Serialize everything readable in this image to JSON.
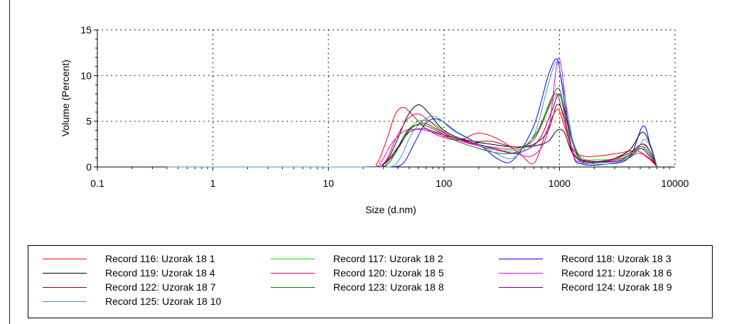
{
  "chart_data": {
    "type": "line",
    "xscale": "log",
    "xlim": [
      0.1,
      10000
    ],
    "ylim": [
      0,
      15
    ],
    "xlabel": "Size (d.nm)",
    "ylabel": "Volume (Percent)",
    "xticks": [
      "0.1",
      "1",
      "10",
      "100",
      "1000",
      "10000"
    ],
    "yticks": [
      "0",
      "5",
      "10",
      "15"
    ],
    "grid": "dotted",
    "legend_position": "bottom",
    "series": [
      {
        "name": "Record 116: Uzorak 18 1",
        "color": "#ff0000",
        "x": [
          0.4,
          20,
          26,
          32,
          38,
          45,
          55,
          70,
          100,
          140,
          200,
          300,
          450,
          600,
          750,
          950,
          1100,
          1300,
          1600,
          2200,
          3200,
          4500,
          5200,
          6200,
          7000
        ],
        "y": [
          0,
          0,
          0.3,
          3.0,
          5.8,
          6.5,
          5.5,
          4.2,
          3.2,
          3.0,
          3.7,
          3.0,
          1.5,
          0.4,
          3.5,
          6.3,
          4.5,
          2.0,
          1.2,
          1.2,
          1.5,
          1.8,
          1.5,
          0.8,
          0
        ]
      },
      {
        "name": "Record 117: Uzorak 18 2",
        "color": "#00ee00",
        "x": [
          0.4,
          20,
          30,
          38,
          48,
          60,
          75,
          100,
          140,
          200,
          300,
          450,
          650,
          850,
          1000,
          1150,
          1500,
          2200,
          3500,
          5000,
          5800,
          7000
        ],
        "y": [
          0,
          0,
          0,
          1.5,
          3.8,
          5.0,
          5.0,
          4.0,
          3.0,
          2.5,
          1.8,
          2.0,
          3.8,
          7.0,
          7.8,
          5.0,
          1.2,
          0.8,
          1.0,
          2.0,
          1.5,
          0
        ]
      },
      {
        "name": "Record 118: Uzorak 18 3",
        "color": "#0000ff",
        "x": [
          0.4,
          20,
          36,
          45,
          55,
          70,
          90,
          130,
          200,
          300,
          400,
          600,
          800,
          950,
          1050,
          1300,
          1600,
          2500,
          4000,
          5300,
          6200,
          7000
        ],
        "y": [
          0,
          0,
          0,
          0.5,
          2.5,
          4.8,
          5.2,
          3.8,
          2.5,
          0.8,
          0.8,
          4.5,
          10.0,
          11.8,
          9.0,
          1.5,
          0.3,
          0.3,
          1.0,
          4.5,
          2.0,
          0
        ]
      },
      {
        "name": "Record 119: Uzorak 18 4",
        "color": "#000000",
        "x": [
          0.4,
          20,
          30,
          38,
          48,
          60,
          75,
          100,
          150,
          250,
          400,
          600,
          800,
          950,
          1100,
          1300,
          1700,
          2500,
          4000,
          5200,
          6200,
          7000
        ],
        "y": [
          0,
          0,
          0.3,
          2.5,
          5.5,
          6.8,
          5.8,
          4.0,
          3.0,
          2.5,
          2.2,
          2.3,
          2.8,
          4.0,
          3.8,
          1.5,
          0.6,
          0.6,
          1.8,
          3.8,
          2.2,
          0
        ]
      },
      {
        "name": "Record 120: Uzorak 18 5",
        "color": "#ff0066",
        "x": [
          0.4,
          20,
          30,
          38,
          48,
          60,
          75,
          100,
          150,
          250,
          400,
          600,
          800,
          950,
          1100,
          1400,
          2000,
          3200,
          4800,
          5800,
          7000
        ],
        "y": [
          0,
          0,
          0.4,
          3.0,
          5.2,
          5.8,
          5.0,
          3.8,
          2.8,
          2.2,
          2.0,
          3.0,
          6.5,
          8.0,
          5.0,
          1.0,
          0.6,
          0.8,
          1.5,
          1.0,
          0
        ]
      },
      {
        "name": "Record 121: Uzorak 18 6",
        "color": "#ee00ee",
        "x": [
          0.4,
          20,
          28,
          35,
          45,
          60,
          80,
          110,
          160,
          250,
          400,
          600,
          800,
          950,
          1050,
          1300,
          1700,
          2500,
          4000,
          5300,
          6200,
          7000
        ],
        "y": [
          0,
          0,
          0.5,
          2.5,
          3.9,
          4.1,
          3.8,
          3.2,
          2.6,
          2.0,
          1.5,
          1.3,
          4.0,
          11.3,
          10.5,
          1.5,
          0.6,
          0.6,
          1.5,
          2.5,
          1.5,
          0
        ]
      },
      {
        "name": "Record 122: Uzorak 18 7",
        "color": "#880022",
        "x": [
          0.4,
          20,
          30,
          40,
          50,
          65,
          85,
          120,
          180,
          260,
          400,
          600,
          800,
          950,
          1100,
          1300,
          1700,
          2500,
          4000,
          5200,
          6200,
          7000
        ],
        "y": [
          0,
          0,
          0.3,
          2.0,
          4.0,
          4.8,
          4.2,
          3.2,
          2.8,
          2.8,
          2.2,
          2.5,
          4.0,
          6.8,
          5.5,
          1.5,
          0.7,
          0.7,
          1.5,
          2.5,
          1.5,
          0
        ]
      },
      {
        "name": "Record 123: Uzorak 18 8",
        "color": "#007700",
        "x": [
          0.4,
          20,
          32,
          40,
          50,
          65,
          85,
          120,
          180,
          300,
          450,
          650,
          850,
          1000,
          1150,
          1500,
          2200,
          3500,
          5000,
          6000,
          7000
        ],
        "y": [
          0,
          0,
          0.3,
          2.2,
          4.2,
          4.6,
          4.0,
          3.0,
          2.2,
          1.5,
          1.8,
          4.0,
          7.5,
          8.5,
          5.0,
          0.8,
          0.5,
          0.8,
          2.2,
          1.5,
          0
        ]
      },
      {
        "name": "Record 124: Uzorak 18 9",
        "color": "#660088",
        "x": [
          0.4,
          20,
          30,
          40,
          50,
          65,
          85,
          120,
          180,
          280,
          420,
          650,
          850,
          1000,
          1150,
          1500,
          2300,
          3700,
          5000,
          6000,
          7000
        ],
        "y": [
          0,
          0,
          0.3,
          2.2,
          3.8,
          4.2,
          3.8,
          3.2,
          2.6,
          2.0,
          1.5,
          2.8,
          6.0,
          8.0,
          5.5,
          1.0,
          0.6,
          0.8,
          2.0,
          1.2,
          0
        ]
      },
      {
        "name": "Record 125: Uzorak 18 10",
        "color": "#4499bb",
        "x": [
          0.4,
          20,
          34,
          42,
          52,
          65,
          85,
          120,
          180,
          280,
          400,
          600,
          800,
          950,
          1100,
          1400,
          1800,
          2800,
          4300,
          5400,
          6300,
          7000
        ],
        "y": [
          0,
          0,
          0,
          1.0,
          3.5,
          5.0,
          5.5,
          4.0,
          2.8,
          1.5,
          1.0,
          3.5,
          9.0,
          11.5,
          8.0,
          1.2,
          0.4,
          0.4,
          1.2,
          3.0,
          1.8,
          0
        ]
      }
    ]
  },
  "legend": {
    "items": [
      {
        "label": "Record 116: Uzorak 18 1",
        "color": "#ff0000"
      },
      {
        "label": "Record 117: Uzorak 18 2",
        "color": "#00ee00"
      },
      {
        "label": "Record 118: Uzorak 18 3",
        "color": "#0000ff"
      },
      {
        "label": "Record 119: Uzorak 18 4",
        "color": "#000000"
      },
      {
        "label": "Record 120: Uzorak 18 5",
        "color": "#ff0066"
      },
      {
        "label": "Record 121: Uzorak 18 6",
        "color": "#ee00ee"
      },
      {
        "label": "Record 122: Uzorak 18 7",
        "color": "#880022"
      },
      {
        "label": "Record 123: Uzorak 18 8",
        "color": "#007700"
      },
      {
        "label": "Record 124: Uzorak 18 9",
        "color": "#660088"
      },
      {
        "label": "Record 125: Uzorak 18 10",
        "color": "#4499bb"
      }
    ]
  }
}
